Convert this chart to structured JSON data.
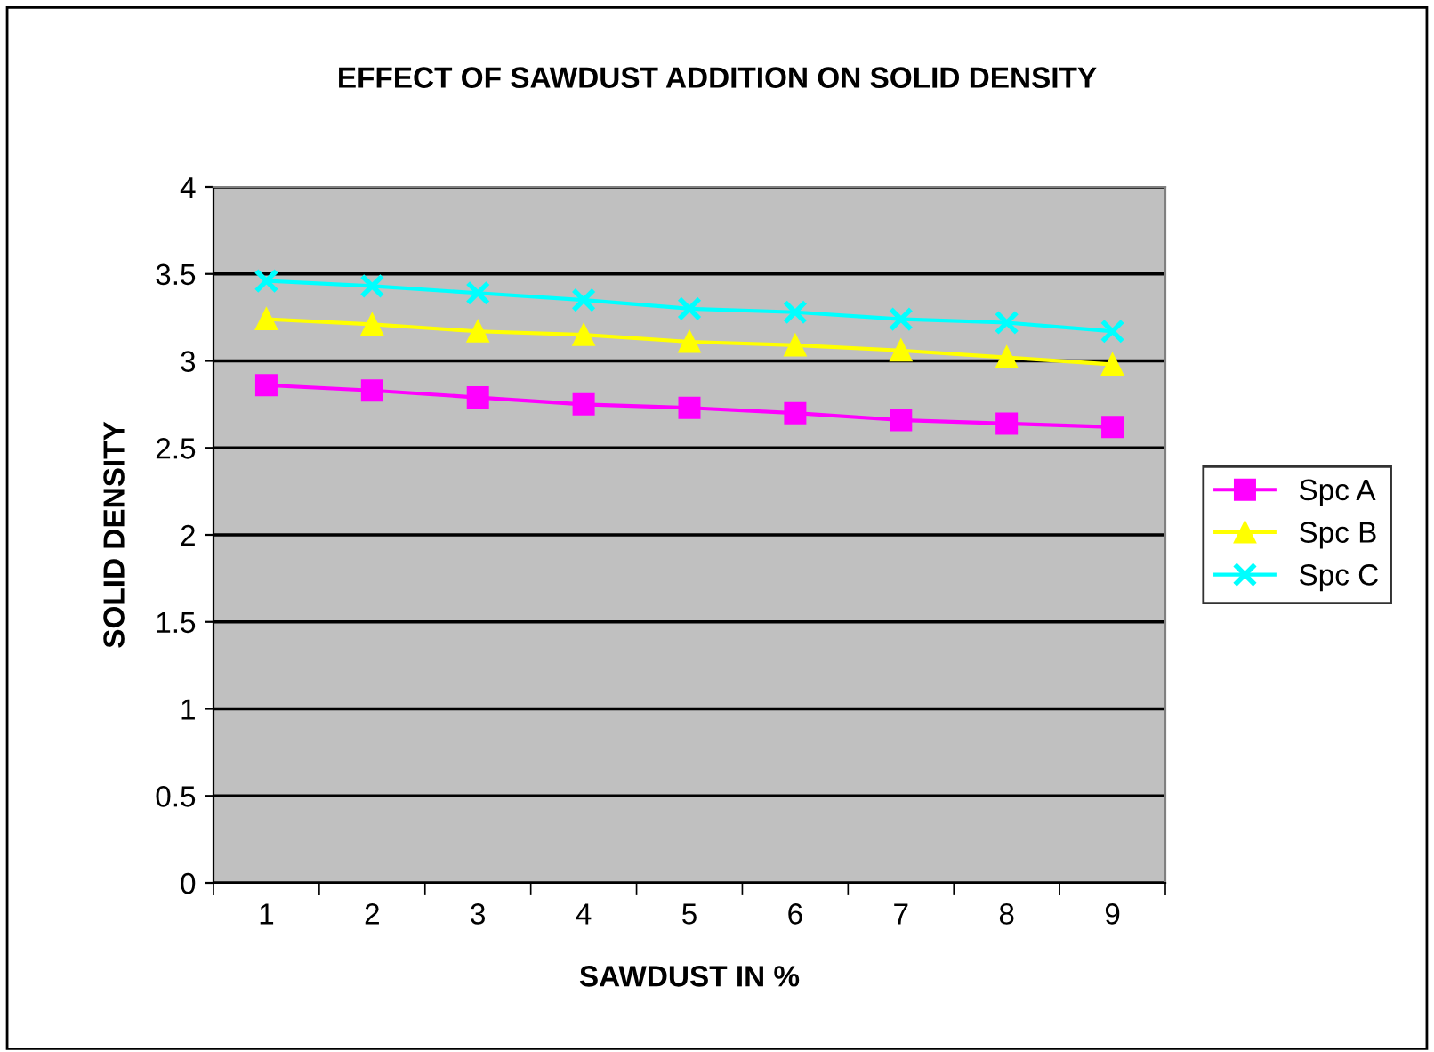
{
  "chart_data": {
    "type": "line",
    "title": "EFFECT OF SAWDUST ADDITION ON SOLID DENSITY",
    "xlabel": "SAWDUST IN %",
    "ylabel": "SOLID DENSITY",
    "categories": [
      "1",
      "2",
      "3",
      "4",
      "5",
      "6",
      "7",
      "8",
      "9"
    ],
    "series": [
      {
        "name": "Spc A",
        "color": "#ff00ff",
        "marker": "square",
        "values": [
          2.86,
          2.83,
          2.79,
          2.75,
          2.73,
          2.7,
          2.66,
          2.64,
          2.62
        ]
      },
      {
        "name": "Spc B",
        "color": "#ffff00",
        "marker": "triangle",
        "values": [
          3.24,
          3.21,
          3.17,
          3.15,
          3.11,
          3.09,
          3.06,
          3.02,
          2.98
        ]
      },
      {
        "name": "Spc C",
        "color": "#00ffff",
        "marker": "cross",
        "values": [
          3.46,
          3.43,
          3.39,
          3.35,
          3.3,
          3.28,
          3.24,
          3.22,
          3.17
        ]
      }
    ],
    "ylim": [
      0,
      4
    ],
    "yticks": [
      0,
      0.5,
      1,
      1.5,
      2,
      2.5,
      3,
      3.5,
      4
    ],
    "grid": "y",
    "legend": "right",
    "line_style": "solid"
  }
}
